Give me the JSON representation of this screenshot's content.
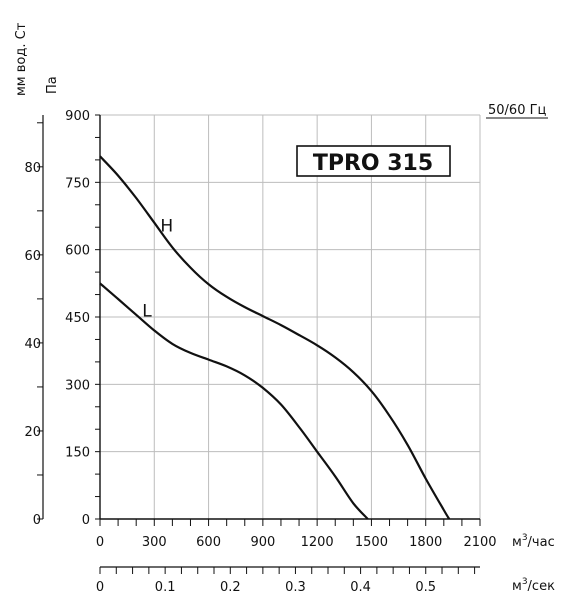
{
  "chart_data": {
    "type": "line",
    "title": "TPRO 315",
    "frequency_label": "50/60 Гц",
    "x_axis": {
      "label_html_parts": [
        "м",
        "3",
        "/час"
      ],
      "range": [
        0,
        2100
      ],
      "ticks": [
        0,
        300,
        600,
        900,
        1200,
        1500,
        1800,
        2100
      ],
      "minor_step": 100
    },
    "x2_axis": {
      "label_parts": [
        "м",
        "3",
        "/сек"
      ],
      "range": [
        0,
        0.5833
      ],
      "ticks": [
        0,
        0.1,
        0.2,
        0.3,
        0.4,
        0.5
      ],
      "tick_labels": [
        "0",
        "0.1",
        "0.2",
        "0.3",
        "0.4",
        "0.5"
      ],
      "minor_step": 0.025
    },
    "y_axis": {
      "label": "Па",
      "range": [
        0,
        900
      ],
      "ticks": [
        0,
        150,
        300,
        450,
        600,
        750,
        900
      ],
      "minor_step": 50
    },
    "y2_axis": {
      "label": "мм вод. Ст",
      "range": [
        0,
        91.77
      ],
      "ticks": [
        0,
        20,
        40,
        60,
        80
      ],
      "minor_step": 10
    },
    "grid": true,
    "series": [
      {
        "name": "H",
        "x": [
          0,
          100,
          200,
          300,
          400,
          500,
          600,
          700,
          800,
          900,
          1000,
          1100,
          1200,
          1300,
          1400,
          1500,
          1600,
          1700,
          1800,
          1900,
          1930
        ],
        "y": [
          808,
          765,
          715,
          660,
          605,
          560,
          523,
          495,
          472,
          452,
          432,
          410,
          387,
          360,
          327,
          285,
          230,
          165,
          90,
          20,
          0
        ]
      },
      {
        "name": "L",
        "x": [
          0,
          100,
          200,
          300,
          400,
          500,
          600,
          700,
          800,
          900,
          1000,
          1100,
          1200,
          1300,
          1400,
          1480
        ],
        "y": [
          525,
          490,
          455,
          420,
          390,
          370,
          355,
          340,
          320,
          292,
          255,
          205,
          150,
          95,
          35,
          0
        ]
      }
    ]
  }
}
